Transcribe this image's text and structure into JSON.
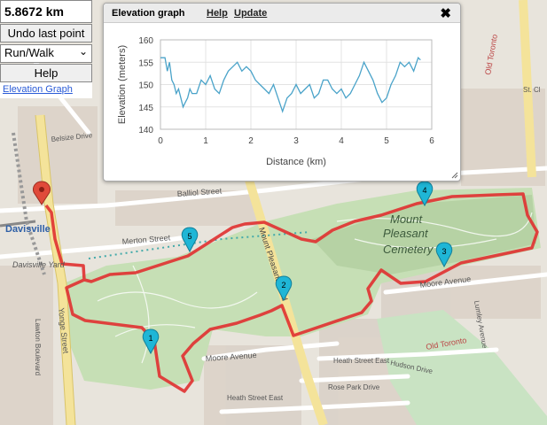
{
  "controls": {
    "distance": "5.8672 km",
    "undo_label": "Undo last point",
    "mode_value": "Run/Walk",
    "help_label": "Help",
    "elevation_link": "Elevation Graph"
  },
  "elevation_panel": {
    "title": "Elevation graph",
    "help_link": "Help",
    "update_link": "Update",
    "close_symbol": "✖"
  },
  "chart_data": {
    "type": "line",
    "xlabel": "Distance (km)",
    "ylabel": "Elevation (meters)",
    "xlim": [
      0,
      6
    ],
    "ylim": [
      140,
      160
    ],
    "xticks": [
      0,
      1,
      2,
      3,
      4,
      5,
      6
    ],
    "yticks": [
      140,
      145,
      150,
      155,
      160
    ],
    "grid": true,
    "color": "#4aa3c9",
    "series": [
      {
        "x": [
          0,
          0.1,
          0.15,
          0.2,
          0.25,
          0.3,
          0.35,
          0.4,
          0.45,
          0.5,
          0.55,
          0.6,
          0.65,
          0.7,
          0.8,
          0.9,
          1.0,
          1.1,
          1.2,
          1.3,
          1.4,
          1.5,
          1.6,
          1.7,
          1.8,
          1.9,
          2.0,
          2.1,
          2.2,
          2.3,
          2.4,
          2.5,
          2.6,
          2.7,
          2.8,
          2.9,
          3.0,
          3.1,
          3.2,
          3.3,
          3.4,
          3.5,
          3.6,
          3.7,
          3.8,
          3.9,
          4.0,
          4.1,
          4.2,
          4.3,
          4.4,
          4.5,
          4.6,
          4.7,
          4.8,
          4.9,
          5.0,
          5.1,
          5.2,
          5.3,
          5.4,
          5.5,
          5.6,
          5.7,
          5.75
        ],
        "y": [
          156,
          156,
          153,
          155,
          151,
          150,
          148,
          149,
          147,
          145,
          146,
          147,
          149,
          148,
          148,
          151,
          150,
          152,
          149,
          148,
          151,
          153,
          154,
          155,
          153,
          154,
          153,
          151,
          150,
          149,
          148,
          150,
          147,
          144,
          147,
          148,
          150,
          148,
          149,
          150,
          147,
          148,
          151,
          151,
          149,
          148,
          149,
          147,
          148,
          150,
          152,
          155,
          153,
          151,
          148,
          146,
          147,
          150,
          152,
          155,
          154,
          155,
          153,
          156,
          155.5
        ]
      }
    ]
  },
  "map": {
    "labels": {
      "davisville": "Davisville",
      "davisville_yard": "Davisville Yard",
      "mount_pleasant_cemetery": "Mount Pleasant Cemetery",
      "mount_pleasant_road": "Mount Pleasant Road",
      "balliol_street": "Balliol Street",
      "merton_street": "Merton Street",
      "moore_avenue": "Moore Avenue",
      "moore_avenue_2": "Moore Avenue",
      "yonge_street": "Yonge Street",
      "heath_street_east": "Heath Street East",
      "rose_park_drive": "Rose Park Drive",
      "hudson_drive": "Hudson Drive",
      "old_toronto": "Old Toronto",
      "old_toronto_2": "Old Toronto",
      "belsize_drive": "Belsize Drive",
      "lawton_boulevard": "Lawton Boulevard",
      "lumley_avenue": "Lumley Avenue",
      "st_clair": "St. Cl"
    },
    "markers": [
      "1",
      "2",
      "3",
      "4",
      "5"
    ],
    "route_color": "#e03030",
    "marker_color": "#1fb6d6",
    "start_color": "#e04a3a"
  }
}
